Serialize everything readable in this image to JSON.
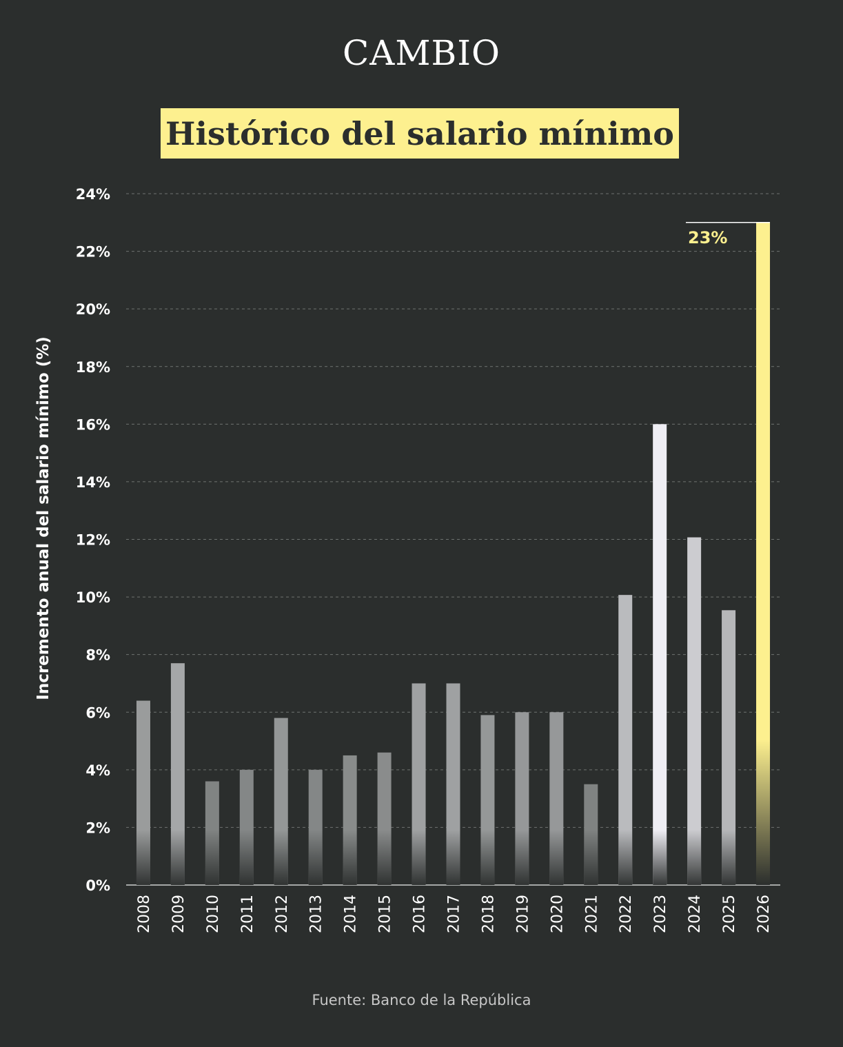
{
  "brand": "CAMBIO",
  "source": "Fuente: Banco de la República",
  "colors": {
    "background": "#2b2e2d",
    "highlight": "#fdf08f",
    "highlight_bar": "#fdf08f"
  },
  "chart_data": {
    "type": "bar",
    "title": "Histórico del salario mínimo",
    "ylabel": "Incremento anual del salario mínimo (%)",
    "xlabel": "",
    "ylim": [
      0,
      24
    ],
    "yticks": [
      "0%",
      "2%",
      "4%",
      "6%",
      "8%",
      "10%",
      "12%",
      "14%",
      "16%",
      "18%",
      "20%",
      "22%",
      "24%"
    ],
    "grid": true,
    "categories": [
      "2008",
      "2009",
      "2010",
      "2011",
      "2012",
      "2013",
      "2014",
      "2015",
      "2016",
      "2017",
      "2018",
      "2019",
      "2020",
      "2021",
      "2022",
      "2023",
      "2024",
      "2025",
      "2026"
    ],
    "values": [
      6.4,
      7.7,
      3.6,
      4.0,
      5.8,
      4.0,
      4.5,
      4.6,
      7.0,
      7.0,
      5.9,
      6.0,
      6.0,
      3.5,
      10.07,
      16.0,
      12.07,
      9.54,
      23.0
    ],
    "highlight_index": 18,
    "annotations": [
      {
        "index": 18,
        "text": "23%"
      }
    ]
  }
}
